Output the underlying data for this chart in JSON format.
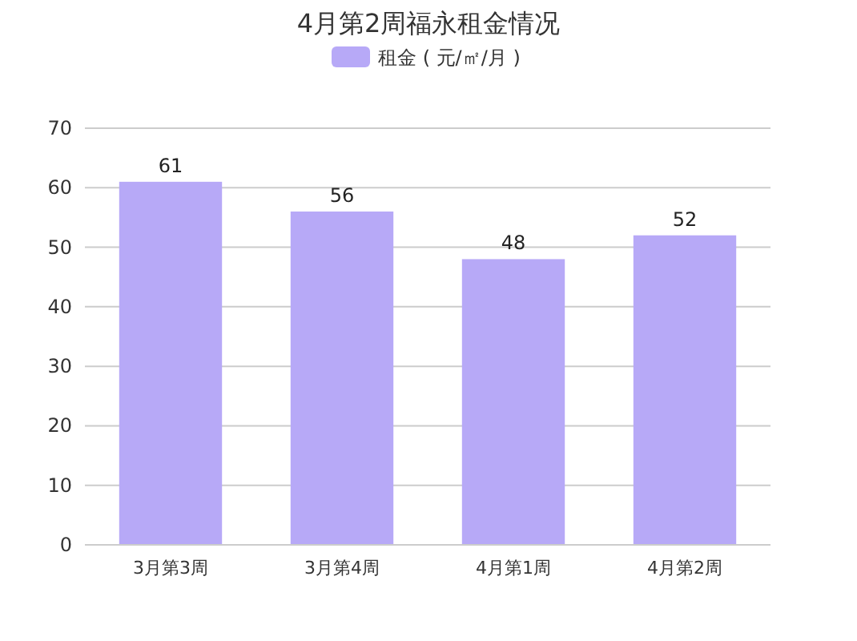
{
  "chart_data": {
    "type": "bar",
    "title": "4月第2周福永租金情况",
    "categories": [
      "3月第3周",
      "3月第4周",
      "4月第1周",
      "4月第2周"
    ],
    "series": [
      {
        "name": "租金 ( 元/㎡/月 )",
        "color": "#b7a9f7",
        "values": [
          61,
          56,
          48,
          52
        ]
      }
    ],
    "ylim": [
      0,
      70
    ],
    "yticks": [
      0,
      10,
      20,
      30,
      40,
      50,
      60,
      70
    ],
    "grid": "y",
    "legend": "top",
    "data_labels": true
  }
}
